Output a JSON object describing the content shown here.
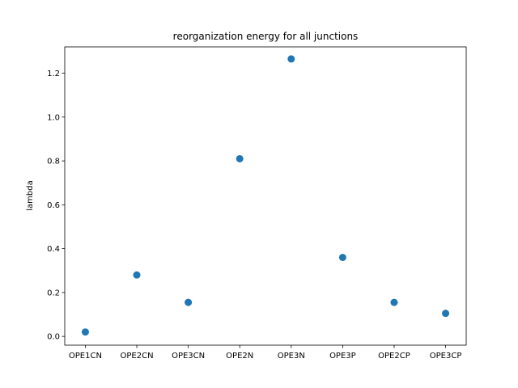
{
  "chart_data": {
    "type": "scatter",
    "title": "reorganization energy for all junctions",
    "xlabel": "",
    "ylabel": "lambda",
    "categories": [
      "OPE1CN",
      "OPE2CN",
      "OPE3CN",
      "OPE2N",
      "OPE3N",
      "OPE3P",
      "OPE2CP",
      "OPE3CP"
    ],
    "values": [
      0.02,
      0.28,
      0.155,
      0.81,
      1.265,
      0.36,
      0.155,
      0.105
    ],
    "ylim": [
      -0.04,
      1.32
    ],
    "yticks": [
      0.0,
      0.2,
      0.4,
      0.6,
      0.8,
      1.0,
      1.2
    ],
    "ytick_labels": [
      "0.0",
      "0.2",
      "0.4",
      "0.6",
      "0.8",
      "1.0",
      "1.2"
    ],
    "grid": false,
    "legend": "none",
    "colors": {
      "marker": "#1f77b4",
      "axes": "#000000"
    }
  }
}
